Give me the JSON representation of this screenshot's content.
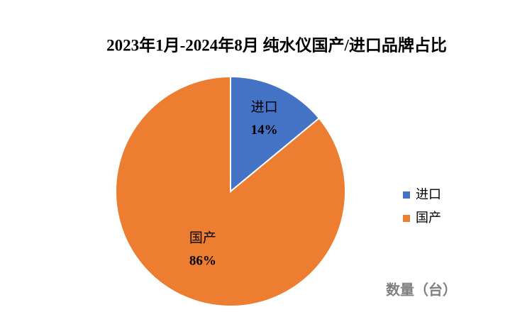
{
  "chart_data": {
    "type": "pie",
    "title": "2023年1月-2024年8月 纯水仪国产/进口品牌占比",
    "categories": [
      "进口",
      "国产"
    ],
    "values": [
      14,
      86
    ],
    "value_labels": [
      "14%",
      "86%"
    ],
    "colors": [
      "#4472c4",
      "#ed7d31"
    ],
    "legend": "right",
    "annotation": "数量（台）"
  }
}
